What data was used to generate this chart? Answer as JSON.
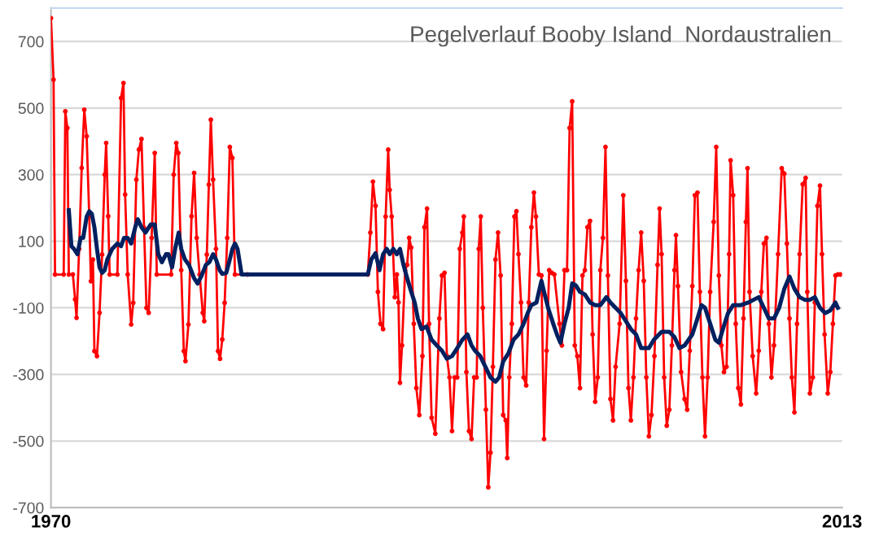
{
  "chart_data": {
    "type": "line",
    "title": "Pegelverlauf Booby Island  Nordaustralien",
    "xlim": [
      1970,
      2013
    ],
    "xticks": [
      1970,
      2013
    ],
    "ylim": [
      -700,
      800
    ],
    "yticks": [
      -700,
      -500,
      -300,
      -100,
      100,
      300,
      500,
      700
    ],
    "grid": "y",
    "series": [
      {
        "color": "#ff0000",
        "marker": "circle",
        "x": [
          1970.0,
          1970.14,
          1970.22,
          1970.69,
          1970.78,
          1970.89,
          1970.97,
          1971.19,
          1971.31,
          1971.39,
          1971.53,
          1971.67,
          1971.81,
          1971.94,
          1972.08,
          1972.17,
          1972.28,
          1972.36,
          1972.5,
          1972.64,
          1972.78,
          1972.92,
          1973.0,
          1973.11,
          1973.19,
          1973.61,
          1973.81,
          1973.94,
          1974.03,
          1974.17,
          1974.36,
          1974.47,
          1974.64,
          1974.78,
          1974.92,
          1975.06,
          1975.19,
          1975.31,
          1975.47,
          1975.64,
          1975.75,
          1976.53,
          1976.67,
          1976.81,
          1976.92,
          1977.08,
          1977.22,
          1977.31,
          1977.47,
          1977.64,
          1977.78,
          1977.92,
          1978.08,
          1978.25,
          1978.33,
          1978.47,
          1978.58,
          1978.69,
          1978.81,
          1978.97,
          1979.08,
          1979.19,
          1979.31,
          1979.44,
          1979.58,
          1979.72,
          1979.86,
          1980.0,
          1980.69,
          1987.22,
          1987.36,
          1987.5,
          1987.64,
          1987.77,
          1987.91,
          1988.05,
          1988.19,
          1988.33,
          1988.41,
          1988.52,
          1988.69,
          1988.8,
          1988.89,
          1988.97,
          1989.08,
          1989.25,
          1989.36,
          1989.47,
          1989.58,
          1989.72,
          1989.86,
          1990.02,
          1990.19,
          1990.3,
          1990.44,
          1990.55,
          1990.69,
          1990.89,
          1991.11,
          1991.25,
          1991.39,
          1991.52,
          1991.66,
          1991.8,
          1991.94,
          1992.08,
          1992.22,
          1992.36,
          1992.44,
          1992.58,
          1992.72,
          1992.86,
          1993.0,
          1993.14,
          1993.25,
          1993.36,
          1993.47,
          1993.64,
          1993.77,
          1993.89,
          1994.02,
          1994.16,
          1994.3,
          1994.44,
          1994.58,
          1994.72,
          1994.8,
          1994.91,
          1995.05,
          1995.19,
          1995.3,
          1995.41,
          1995.55,
          1995.69,
          1995.83,
          1995.97,
          1996.11,
          1996.25,
          1996.36,
          1996.52,
          1996.66,
          1996.8,
          1996.94,
          1997.08,
          1997.22,
          1997.36,
          1997.64,
          1997.77,
          1997.91,
          1998.05,
          1998.19,
          1998.33,
          1998.47,
          1998.61,
          1998.75,
          1998.89,
          1999.02,
          1999.16,
          1999.3,
          1999.44,
          1999.58,
          1999.72,
          1999.86,
          2000.0,
          2000.14,
          2000.27,
          2000.41,
          2000.55,
          2000.69,
          2000.91,
          2001.11,
          2001.25,
          2001.39,
          2001.52,
          2001.66,
          2001.8,
          2001.94,
          2002.08,
          2002.22,
          2002.36,
          2002.5,
          2002.64,
          2002.8,
          2002.97,
          2003.08,
          2003.19,
          2003.33,
          2003.47,
          2003.61,
          2003.75,
          2003.89,
          2003.97,
          2004.08,
          2004.25,
          2004.44,
          2004.58,
          2004.72,
          2004.86,
          2005.0,
          2005.14,
          2005.27,
          2005.41,
          2005.55,
          2005.69,
          2005.83,
          2006.02,
          2006.16,
          2006.3,
          2006.44,
          2006.58,
          2006.72,
          2006.86,
          2006.94,
          2007.08,
          2007.22,
          2007.36,
          2007.5,
          2007.64,
          2007.77,
          2007.86,
          2007.97,
          2008.14,
          2008.33,
          2008.47,
          2008.61,
          2008.75,
          2008.89,
          2009.02,
          2009.16,
          2009.3,
          2009.52,
          2009.72,
          2009.86,
          2010.0,
          2010.14,
          2010.27,
          2010.41,
          2010.55,
          2010.69,
          2010.86,
          2011.02,
          2011.11,
          2011.25,
          2011.41,
          2011.52,
          2011.66,
          2011.8,
          2011.91,
          2012.05,
          2012.22,
          2012.36,
          2012.5,
          2012.64,
          2012.77,
          2012.91
        ],
        "values": [
          770,
          585,
          0,
          0,
          490,
          440,
          0,
          0,
          -75,
          -130,
          77,
          320,
          495,
          415,
          175,
          -20,
          45,
          -230,
          -245,
          -115,
          60,
          300,
          395,
          175,
          0,
          0,
          530,
          575,
          240,
          0,
          -150,
          -85,
          285,
          375,
          407,
          140,
          -100,
          -115,
          110,
          365,
          0,
          0,
          300,
          395,
          365,
          13,
          -230,
          -260,
          -150,
          175,
          305,
          110,
          0,
          -115,
          -140,
          60,
          270,
          465,
          285,
          77,
          -230,
          -253,
          -195,
          -85,
          110,
          383,
          350,
          0,
          0,
          0,
          126,
          279,
          206,
          -52,
          -148,
          -164,
          174,
          375,
          254,
          174,
          -68,
          0,
          -84,
          -325,
          -213,
          13,
          29,
          110,
          81,
          -148,
          -341,
          -422,
          -245,
          142,
          198,
          -148,
          -430,
          -478,
          -132,
          -3,
          5,
          -245,
          -309,
          -470,
          -309,
          -309,
          77,
          126,
          174,
          -293,
          -470,
          -494,
          -309,
          -309,
          77,
          174,
          -100,
          -406,
          -639,
          -535,
          -277,
          45,
          126,
          -3,
          -422,
          -438,
          -551,
          -309,
          -148,
          174,
          190,
          61,
          -84,
          -309,
          -333,
          -84,
          142,
          246,
          174,
          0,
          -3,
          -494,
          -229,
          13,
          5,
          0,
          -148,
          -213,
          13,
          13,
          440,
          520,
          -213,
          -245,
          -341,
          -3,
          13,
          142,
          161,
          -180,
          -382,
          -309,
          13,
          110,
          383,
          -3,
          -374,
          -438,
          -277,
          -148,
          238,
          -19,
          -341,
          -438,
          -309,
          -132,
          13,
          126,
          -19,
          -309,
          -486,
          -422,
          -245,
          29,
          198,
          61,
          -309,
          -454,
          -406,
          -213,
          13,
          118,
          -35,
          -293,
          -374,
          -406,
          -229,
          -35,
          238,
          246,
          -52,
          -309,
          -486,
          -309,
          -52,
          158,
          383,
          -3,
          -213,
          -293,
          -277,
          61,
          343,
          238,
          -148,
          -341,
          -390,
          -132,
          158,
          319,
          -52,
          -245,
          -357,
          -229,
          -52,
          93,
          110,
          -148,
          -309,
          -213,
          61,
          319,
          303,
          93,
          -132,
          -309,
          -414,
          -148,
          61,
          271,
          290,
          -52,
          -357,
          -309,
          -84,
          206,
          267,
          61,
          -180,
          -357,
          -293,
          -148,
          -3,
          0,
          0
        ]
      },
      {
        "color": "#002060",
        "marker": "none",
        "x": [
          1970.97,
          1971.11,
          1971.25,
          1971.44,
          1971.61,
          1971.75,
          1971.94,
          1972.08,
          1972.22,
          1972.36,
          1972.5,
          1972.64,
          1972.78,
          1972.92,
          1973.06,
          1973.33,
          1973.61,
          1973.81,
          1973.97,
          1974.17,
          1974.36,
          1974.58,
          1974.72,
          1974.92,
          1975.14,
          1975.42,
          1975.64,
          1975.83,
          1976.03,
          1976.25,
          1976.39,
          1976.58,
          1976.75,
          1976.94,
          1977.08,
          1977.28,
          1977.5,
          1977.78,
          1977.97,
          1978.19,
          1978.42,
          1978.61,
          1978.81,
          1978.97,
          1979.17,
          1979.31,
          1979.53,
          1979.72,
          1979.86,
          1980.0,
          1980.14,
          1980.28,
          1980.36,
          1987.22,
          1987.41,
          1987.64,
          1987.86,
          1988.05,
          1988.25,
          1988.41,
          1988.61,
          1988.8,
          1988.97,
          1989.16,
          1989.36,
          1989.58,
          1989.77,
          1989.94,
          1990.14,
          1990.41,
          1990.69,
          1990.97,
          1991.25,
          1991.52,
          1991.8,
          1992.08,
          1992.36,
          1992.64,
          1992.86,
          1993.05,
          1993.33,
          1993.61,
          1993.89,
          1994.16,
          1994.36,
          1994.58,
          1994.86,
          1995.14,
          1995.41,
          1995.69,
          1995.91,
          1996.11,
          1996.39,
          1996.52,
          1996.66,
          1996.8,
          1997.02,
          1997.3,
          1997.5,
          1997.69,
          1997.91,
          1998.14,
          1998.33,
          1998.52,
          1998.75,
          1999.02,
          1999.3,
          1999.58,
          1999.86,
          2000.19,
          2000.41,
          2000.69,
          2000.97,
          2001.25,
          2001.52,
          2001.8,
          2002.08,
          2002.5,
          2002.77,
          2003.19,
          2003.61,
          2003.89,
          2004.16,
          2004.44,
          2004.86,
          2005.14,
          2005.36,
          2005.55,
          2005.83,
          2006.11,
          2006.3,
          2006.52,
          2006.8,
          2007.08,
          2007.5,
          2007.91,
          2008.19,
          2008.47,
          2008.75,
          2009.02,
          2009.3,
          2009.58,
          2009.86,
          2010.14,
          2010.41,
          2010.69,
          2010.97,
          2011.25,
          2011.52,
          2011.8,
          2012.08,
          2012.36,
          2012.64,
          2012.77
        ],
        "values": [
          193,
          85,
          77,
          61,
          110,
          110,
          174,
          190,
          182,
          142,
          77,
          21,
          5,
          13,
          45,
          77,
          93,
          85,
          110,
          110,
          93,
          142,
          166,
          142,
          126,
          150,
          150,
          61,
          37,
          61,
          61,
          21,
          77,
          126,
          77,
          45,
          29,
          -11,
          -27,
          -3,
          29,
          37,
          61,
          45,
          13,
          2,
          5,
          45,
          77,
          93,
          77,
          29,
          0,
          0,
          45,
          64,
          13,
          61,
          77,
          61,
          77,
          61,
          77,
          29,
          -11,
          -52,
          -84,
          -132,
          -164,
          -156,
          -196,
          -213,
          -229,
          -253,
          -245,
          -221,
          -196,
          -180,
          -213,
          -229,
          -245,
          -277,
          -309,
          -322,
          -309,
          -261,
          -237,
          -196,
          -180,
          -148,
          -116,
          -92,
          -84,
          -52,
          -19,
          -52,
          -100,
          -148,
          -180,
          -205,
          -148,
          -100,
          -27,
          -32,
          -52,
          -60,
          -84,
          -92,
          -92,
          -68,
          -84,
          -100,
          -116,
          -140,
          -164,
          -180,
          -221,
          -221,
          -196,
          -172,
          -172,
          -188,
          -221,
          -213,
          -180,
          -132,
          -92,
          -100,
          -148,
          -196,
          -205,
          -164,
          -116,
          -92,
          -92,
          -84,
          -76,
          -68,
          -100,
          -132,
          -132,
          -100,
          -43,
          -6,
          -43,
          -68,
          -76,
          -76,
          -68,
          -100,
          -116,
          -108,
          -84,
          -100
        ]
      }
    ]
  }
}
